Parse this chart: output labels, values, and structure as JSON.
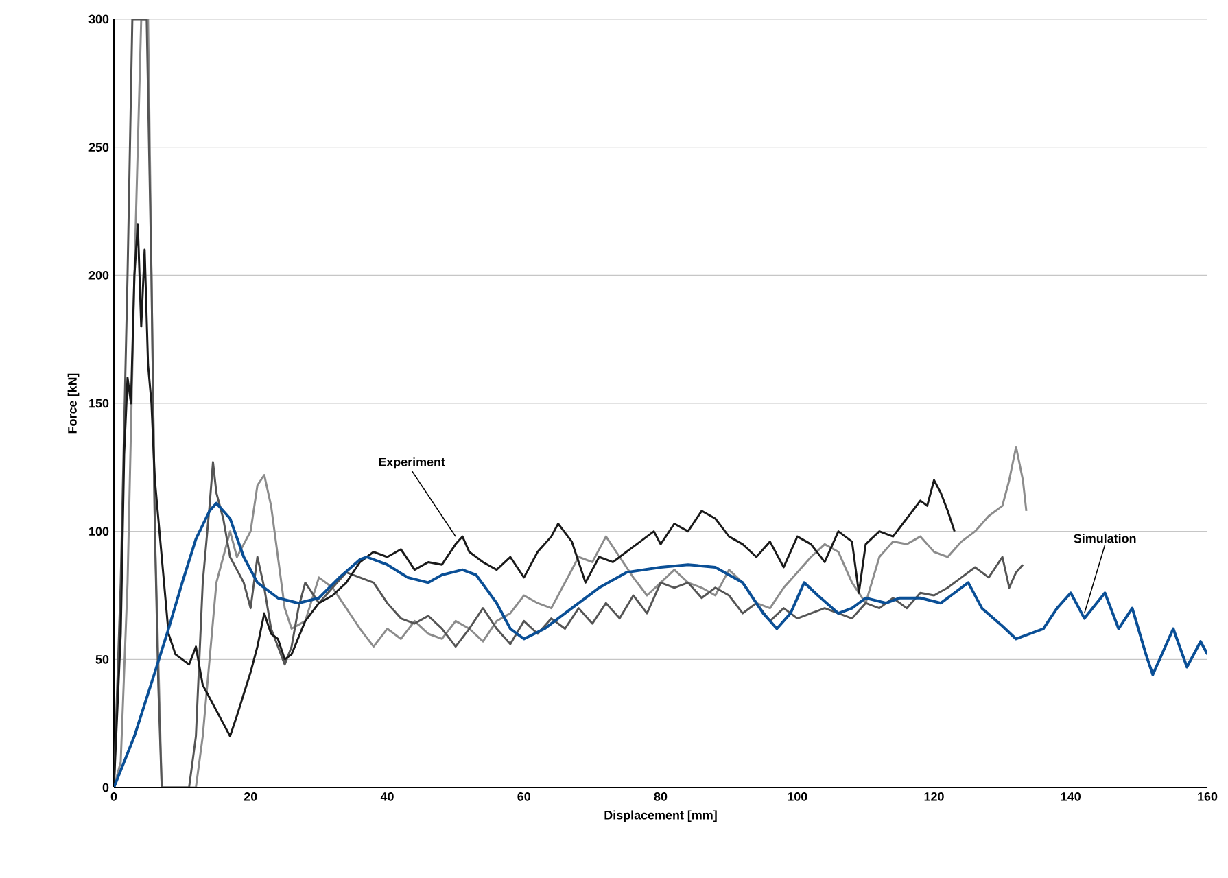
{
  "chart_data": {
    "type": "line",
    "xlabel": "Displacement [mm]",
    "ylabel": "Force [kN]",
    "xlim": [
      0,
      160
    ],
    "ylim": [
      0,
      300
    ],
    "xticks": [
      0,
      20,
      40,
      60,
      80,
      100,
      120,
      140,
      160
    ],
    "yticks": [
      0,
      50,
      100,
      150,
      200,
      250,
      300
    ],
    "grid": "y",
    "line_style": "solid",
    "marker": "none",
    "series": [
      {
        "color": "#8c8c8c",
        "x": [
          0,
          1,
          2,
          3,
          4,
          5,
          5.5,
          6,
          7,
          12,
          13,
          14,
          15,
          16,
          17,
          18,
          19,
          20,
          21,
          22,
          23,
          24,
          25,
          26,
          28,
          30,
          32,
          34,
          36,
          38,
          40,
          42,
          44,
          46,
          48,
          50,
          52,
          54,
          56,
          58,
          60,
          62,
          64,
          66,
          68,
          70,
          72,
          74,
          76,
          78,
          80,
          82,
          84,
          86,
          88,
          90,
          92,
          94,
          96,
          98,
          100,
          102,
          104,
          106,
          108,
          110,
          112,
          114,
          116,
          118,
          120,
          122,
          124,
          126,
          128,
          130,
          131,
          132,
          133,
          133.5
        ],
        "values": [
          0,
          10,
          80,
          200,
          300,
          300,
          200,
          100,
          0,
          0,
          20,
          50,
          80,
          90,
          100,
          90,
          95,
          100,
          118,
          122,
          110,
          90,
          70,
          62,
          65,
          82,
          78,
          70,
          62,
          55,
          62,
          58,
          65,
          60,
          58,
          65,
          62,
          57,
          65,
          68,
          75,
          72,
          70,
          80,
          90,
          88,
          98,
          90,
          82,
          75,
          80,
          85,
          80,
          78,
          75,
          85,
          80,
          72,
          70,
          78,
          84,
          90,
          95,
          92,
          80,
          72,
          90,
          96,
          95,
          98,
          92,
          90,
          96,
          100,
          106,
          110,
          120,
          133,
          120,
          108
        ]
      },
      {
        "color": "#555555",
        "x": [
          0,
          1,
          2,
          2.7,
          4.8,
          5.5,
          6,
          6.5,
          7,
          11,
          12,
          13,
          14,
          14.5,
          15,
          16,
          17,
          18,
          19,
          20,
          21,
          22,
          23,
          24,
          25,
          26,
          27,
          28,
          30,
          32,
          34,
          36,
          38,
          40,
          42,
          44,
          46,
          48,
          50,
          52,
          54,
          56,
          58,
          60,
          62,
          64,
          66,
          68,
          70,
          72,
          74,
          76,
          78,
          80,
          82,
          84,
          86,
          88,
          90,
          92,
          94,
          96,
          98,
          100,
          102,
          104,
          106,
          108,
          110,
          112,
          114,
          116,
          118,
          120,
          122,
          124,
          126,
          128,
          130,
          131,
          132,
          133
        ],
        "values": [
          0,
          80,
          200,
          300,
          300,
          200,
          100,
          40,
          0,
          0,
          20,
          80,
          110,
          127,
          115,
          105,
          90,
          85,
          80,
          70,
          90,
          78,
          62,
          55,
          48,
          55,
          70,
          80,
          72,
          78,
          84,
          82,
          80,
          72,
          66,
          64,
          67,
          62,
          55,
          62,
          70,
          62,
          56,
          65,
          60,
          66,
          62,
          70,
          64,
          72,
          66,
          75,
          68,
          80,
          78,
          80,
          74,
          78,
          75,
          68,
          72,
          65,
          70,
          66,
          68,
          70,
          68,
          66,
          72,
          70,
          74,
          70,
          76,
          75,
          78,
          82,
          86,
          82,
          90,
          78,
          84,
          87
        ]
      },
      {
        "color": "#1a1a1a",
        "x": [
          0,
          1,
          1.5,
          2,
          2.5,
          3,
          3.5,
          4,
          4.5,
          5,
          5.5,
          6,
          7,
          8,
          9,
          10,
          11,
          12,
          13,
          14,
          16,
          17,
          18,
          20,
          21,
          22,
          23,
          24,
          25,
          26,
          28,
          30,
          32,
          34,
          36,
          38,
          40,
          42,
          44,
          46,
          48,
          50,
          51,
          52,
          54,
          56,
          58,
          60,
          62,
          64,
          65,
          67,
          69,
          71,
          73,
          75,
          77,
          79,
          80,
          82,
          84,
          86,
          88,
          90,
          92,
          94,
          96,
          98,
          100,
          102,
          104,
          106,
          108,
          109,
          110,
          112,
          114,
          116,
          118,
          119,
          120,
          121,
          122,
          123
        ],
        "values": [
          0,
          60,
          130,
          160,
          150,
          200,
          220,
          180,
          210,
          165,
          150,
          120,
          90,
          60,
          52,
          50,
          48,
          55,
          40,
          35,
          25,
          20,
          28,
          45,
          55,
          68,
          60,
          58,
          50,
          52,
          65,
          72,
          75,
          80,
          88,
          92,
          90,
          93,
          85,
          88,
          87,
          95,
          98,
          92,
          88,
          85,
          90,
          82,
          92,
          98,
          103,
          96,
          80,
          90,
          88,
          92,
          96,
          100,
          95,
          103,
          100,
          108,
          105,
          98,
          95,
          90,
          96,
          86,
          98,
          95,
          88,
          100,
          96,
          76,
          95,
          100,
          98,
          105,
          112,
          110,
          120,
          115,
          108,
          100
        ]
      },
      {
        "color": "#0a4f96",
        "x": [
          0,
          3,
          6,
          8,
          10,
          12,
          14,
          15,
          17,
          19,
          21,
          24,
          27,
          30,
          33,
          36,
          37,
          40,
          43,
          46,
          48,
          51,
          53,
          56,
          58,
          60,
          63,
          67,
          71,
          75,
          80,
          84,
          88,
          92,
          95,
          97,
          99,
          101,
          103,
          106,
          108,
          110,
          113,
          115,
          118,
          121,
          123,
          125,
          127,
          130,
          132,
          134,
          136,
          138,
          140,
          142,
          145,
          147,
          149,
          151,
          152,
          154,
          155,
          157,
          159,
          160
        ],
        "values": [
          0,
          20,
          45,
          62,
          80,
          97,
          108,
          111,
          105,
          90,
          80,
          74,
          72,
          74,
          82,
          89,
          90,
          87,
          82,
          80,
          83,
          85,
          83,
          72,
          62,
          58,
          62,
          70,
          78,
          84,
          86,
          87,
          86,
          80,
          68,
          62,
          68,
          80,
          75,
          68,
          70,
          74,
          72,
          74,
          74,
          72,
          76,
          80,
          70,
          63,
          58,
          60,
          62,
          70,
          76,
          66,
          76,
          62,
          70,
          52,
          44,
          56,
          62,
          47,
          57,
          52
        ]
      }
    ],
    "annotations": [
      {
        "text": "Experiment",
        "x": 50,
        "y": 98
      },
      {
        "text": "Simulation",
        "x": 142,
        "y": 68
      }
    ]
  }
}
